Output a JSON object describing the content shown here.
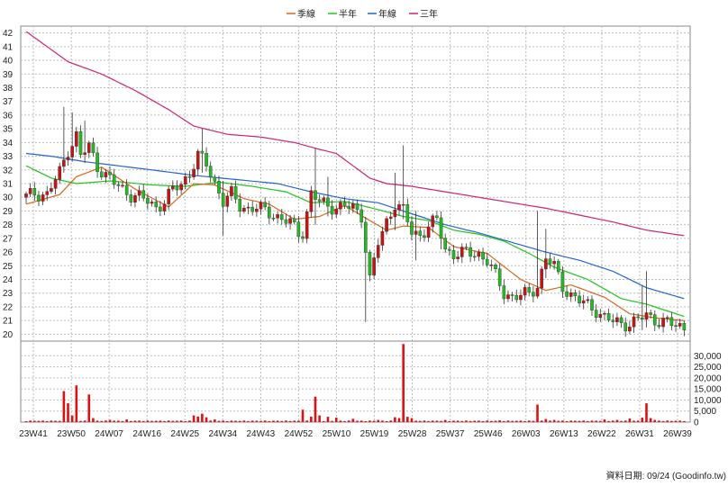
{
  "legend": [
    {
      "label": "季線",
      "color": "#d2691e"
    },
    {
      "label": "半年",
      "color": "#22c322"
    },
    {
      "label": "年線",
      "color": "#2266cc"
    },
    {
      "label": "三年",
      "color": "#cc2277"
    }
  ],
  "watermark": "資料日期: 09/24  (Goodinfo.tw)",
  "chart_data": [
    {
      "type": "candlestick",
      "y_ticks": [
        20,
        21,
        22,
        23,
        24,
        25,
        26,
        27,
        28,
        29,
        30,
        31,
        32,
        33,
        34,
        35,
        36,
        37,
        38,
        39,
        40,
        41,
        42
      ],
      "ylim": [
        19.5,
        42.5
      ],
      "x_tick_labels": [
        "23W41",
        "23W50",
        "24W07",
        "24W16",
        "24W25",
        "24W34",
        "24W43",
        "24W52",
        "25W10",
        "25W19",
        "25W28",
        "25W37",
        "25W46",
        "26W03",
        "26W13",
        "26W22",
        "26W31",
        "26W39"
      ],
      "grid": true,
      "up_color": "#cc1111",
      "down_color": "#22bb22",
      "anchors": [
        [
          0,
          30.0
        ],
        [
          2,
          30.3
        ],
        [
          5,
          30.2
        ],
        [
          8,
          31.8
        ],
        [
          10,
          33.5
        ],
        [
          12,
          34.5
        ],
        [
          13,
          33.0
        ],
        [
          15,
          33.7
        ],
        [
          17,
          32.3
        ],
        [
          19,
          31.6
        ],
        [
          21,
          31.0
        ],
        [
          23,
          30.6
        ],
        [
          25,
          30.2
        ],
        [
          27,
          30.0
        ],
        [
          29,
          29.7
        ],
        [
          31,
          29.3
        ],
        [
          33,
          29.7
        ],
        [
          35,
          30.5
        ],
        [
          37,
          31.0
        ],
        [
          39,
          31.8
        ],
        [
          41,
          33.0
        ],
        [
          43,
          32.4
        ],
        [
          45,
          31.1
        ],
        [
          47,
          29.7
        ],
        [
          49,
          30.2
        ],
        [
          51,
          29.4
        ],
        [
          53,
          29.2
        ],
        [
          55,
          29.2
        ],
        [
          57,
          29.0
        ],
        [
          59,
          28.8
        ],
        [
          61,
          28.4
        ],
        [
          63,
          28.1
        ],
        [
          65,
          27.4
        ],
        [
          66,
          27.5
        ],
        [
          68,
          30.3
        ],
        [
          70,
          29.6
        ],
        [
          72,
          29.4
        ],
        [
          74,
          29.3
        ],
        [
          76,
          29.3
        ],
        [
          78,
          29.2
        ],
        [
          80,
          28.7
        ],
        [
          82,
          24.0
        ],
        [
          84,
          26.6
        ],
        [
          86,
          28.2
        ],
        [
          88,
          29.6
        ],
        [
          90,
          29.0
        ],
        [
          92,
          27.4
        ],
        [
          94,
          27.3
        ],
        [
          96,
          27.9
        ],
        [
          98,
          28.3
        ],
        [
          100,
          26.2
        ],
        [
          102,
          25.9
        ],
        [
          104,
          25.9
        ],
        [
          106,
          25.9
        ],
        [
          108,
          25.9
        ],
        [
          110,
          25.4
        ],
        [
          112,
          24.2
        ],
        [
          114,
          23.0
        ],
        [
          116,
          22.8
        ],
        [
          118,
          22.8
        ],
        [
          120,
          22.9
        ],
        [
          122,
          23.6
        ],
        [
          124,
          25.6
        ],
        [
          126,
          24.9
        ],
        [
          128,
          23.5
        ],
        [
          130,
          22.9
        ],
        [
          132,
          22.4
        ],
        [
          134,
          22.1
        ],
        [
          136,
          21.8
        ],
        [
          138,
          21.2
        ],
        [
          140,
          20.9
        ],
        [
          142,
          20.8
        ],
        [
          144,
          20.8
        ],
        [
          146,
          21.0
        ],
        [
          148,
          21.4
        ],
        [
          150,
          21.1
        ],
        [
          152,
          20.9
        ],
        [
          154,
          20.7
        ],
        [
          156,
          20.6
        ],
        [
          157,
          20.5
        ]
      ],
      "spikes": [
        {
          "i": 9,
          "high": 36.6,
          "low": 31.8
        },
        {
          "i": 11,
          "high": 36.2,
          "low": 32.6
        },
        {
          "i": 14,
          "high": 35.6,
          "low": 32.5
        },
        {
          "i": 42,
          "high": 35.0,
          "low": 31.8
        },
        {
          "i": 47,
          "high": 31.2,
          "low": 27.2
        },
        {
          "i": 69,
          "high": 33.6,
          "low": 28.0
        },
        {
          "i": 72,
          "high": 31.5,
          "low": 28.6
        },
        {
          "i": 81,
          "high": 25.0,
          "low": 20.9
        },
        {
          "i": 88,
          "high": 31.8,
          "low": 27.6
        },
        {
          "i": 90,
          "high": 33.8,
          "low": 28.4
        },
        {
          "i": 93,
          "high": 29.0,
          "low": 25.4
        },
        {
          "i": 99,
          "high": 28.6,
          "low": 26.2
        },
        {
          "i": 122,
          "high": 29.0,
          "low": 22.9
        },
        {
          "i": 124,
          "high": 27.7,
          "low": 24.1
        },
        {
          "i": 148,
          "high": 24.6,
          "low": 20.5
        },
        {
          "i": 147,
          "high": 23.6,
          "low": 20.3
        }
      ],
      "ma_quarter": [
        [
          0,
          29.5
        ],
        [
          8,
          30.2
        ],
        [
          12,
          31.5
        ],
        [
          18,
          32.2
        ],
        [
          26,
          30.6
        ],
        [
          34,
          29.3
        ],
        [
          40,
          31.0
        ],
        [
          45,
          30.9
        ],
        [
          52,
          29.9
        ],
        [
          58,
          29.5
        ],
        [
          64,
          28.4
        ],
        [
          70,
          28.6
        ],
        [
          76,
          29.4
        ],
        [
          82,
          28.3
        ],
        [
          86,
          27.6
        ],
        [
          90,
          27.9
        ],
        [
          96,
          27.8
        ],
        [
          102,
          26.4
        ],
        [
          110,
          25.9
        ],
        [
          118,
          24.0
        ],
        [
          124,
          23.2
        ],
        [
          130,
          23.6
        ],
        [
          138,
          22.7
        ],
        [
          144,
          21.5
        ],
        [
          150,
          21.2
        ],
        [
          157,
          21.0
        ]
      ],
      "ma_half": [
        [
          0,
          32.3
        ],
        [
          6,
          31.4
        ],
        [
          12,
          31.0
        ],
        [
          20,
          31.2
        ],
        [
          30,
          30.9
        ],
        [
          38,
          30.8
        ],
        [
          46,
          31.1
        ],
        [
          54,
          30.8
        ],
        [
          62,
          30.4
        ],
        [
          68,
          29.6
        ],
        [
          76,
          29.7
        ],
        [
          84,
          29.1
        ],
        [
          90,
          28.6
        ],
        [
          96,
          28.3
        ],
        [
          102,
          27.6
        ],
        [
          108,
          27.3
        ],
        [
          114,
          26.8
        ],
        [
          120,
          25.9
        ],
        [
          126,
          24.9
        ],
        [
          134,
          24.0
        ],
        [
          142,
          22.6
        ],
        [
          148,
          22.2
        ],
        [
          157,
          21.3
        ]
      ],
      "ma_year": [
        [
          0,
          33.2
        ],
        [
          6,
          33.0
        ],
        [
          14,
          32.6
        ],
        [
          22,
          32.3
        ],
        [
          30,
          32.0
        ],
        [
          40,
          31.6
        ],
        [
          50,
          31.3
        ],
        [
          60,
          31.0
        ],
        [
          68,
          30.4
        ],
        [
          76,
          29.9
        ],
        [
          84,
          29.6
        ],
        [
          92,
          28.8
        ],
        [
          100,
          28.0
        ],
        [
          108,
          27.4
        ],
        [
          116,
          26.7
        ],
        [
          124,
          26.0
        ],
        [
          132,
          25.4
        ],
        [
          140,
          24.6
        ],
        [
          148,
          23.4
        ],
        [
          157,
          22.6
        ]
      ],
      "ma_3year": [
        [
          0,
          42.1
        ],
        [
          5,
          41.0
        ],
        [
          10,
          39.9
        ],
        [
          18,
          39.0
        ],
        [
          26,
          37.8
        ],
        [
          34,
          36.4
        ],
        [
          40,
          35.2
        ],
        [
          48,
          34.6
        ],
        [
          56,
          34.4
        ],
        [
          64,
          34.0
        ],
        [
          70,
          33.5
        ],
        [
          74,
          33.2
        ],
        [
          78,
          32.3
        ],
        [
          82,
          31.4
        ],
        [
          86,
          31.0
        ],
        [
          92,
          30.8
        ],
        [
          100,
          30.4
        ],
        [
          108,
          30.0
        ],
        [
          116,
          29.6
        ],
        [
          124,
          29.2
        ],
        [
          132,
          28.7
        ],
        [
          140,
          28.2
        ],
        [
          148,
          27.6
        ],
        [
          157,
          27.2
        ]
      ],
      "volume": {
        "y_ticks": [
          "0",
          "5,000",
          "10,000",
          "15,000",
          "20,000",
          "25,000",
          "30,000"
        ],
        "ylim": [
          0,
          35000
        ],
        "bar_color": "#dd1111",
        "baseline": 400,
        "spikes": [
          {
            "i": 9,
            "v": 14000
          },
          {
            "i": 10,
            "v": 8500
          },
          {
            "i": 12,
            "v": 16600
          },
          {
            "i": 15,
            "v": 12500
          },
          {
            "i": 11,
            "v": 3000
          },
          {
            "i": 16,
            "v": 1800
          },
          {
            "i": 20,
            "v": 1000
          },
          {
            "i": 24,
            "v": 1200
          },
          {
            "i": 40,
            "v": 3000
          },
          {
            "i": 41,
            "v": 2500
          },
          {
            "i": 42,
            "v": 3800
          },
          {
            "i": 43,
            "v": 2200
          },
          {
            "i": 45,
            "v": 1200
          },
          {
            "i": 66,
            "v": 5600
          },
          {
            "i": 69,
            "v": 11500
          },
          {
            "i": 68,
            "v": 2500
          },
          {
            "i": 70,
            "v": 3000
          },
          {
            "i": 72,
            "v": 2400
          },
          {
            "i": 74,
            "v": 2000
          },
          {
            "i": 78,
            "v": 1500
          },
          {
            "i": 84,
            "v": 1000
          },
          {
            "i": 88,
            "v": 2200
          },
          {
            "i": 89,
            "v": 1800
          },
          {
            "i": 90,
            "v": 35300
          },
          {
            "i": 91,
            "v": 2400
          },
          {
            "i": 92,
            "v": 1800
          },
          {
            "i": 100,
            "v": 1000
          },
          {
            "i": 113,
            "v": 800
          },
          {
            "i": 122,
            "v": 7900
          },
          {
            "i": 124,
            "v": 1400
          },
          {
            "i": 126,
            "v": 1000
          },
          {
            "i": 138,
            "v": 1200
          },
          {
            "i": 141,
            "v": 1000
          },
          {
            "i": 144,
            "v": 1600
          },
          {
            "i": 147,
            "v": 2000
          },
          {
            "i": 148,
            "v": 8500
          },
          {
            "i": 149,
            "v": 1800
          },
          {
            "i": 150,
            "v": 1000
          }
        ]
      }
    }
  ]
}
